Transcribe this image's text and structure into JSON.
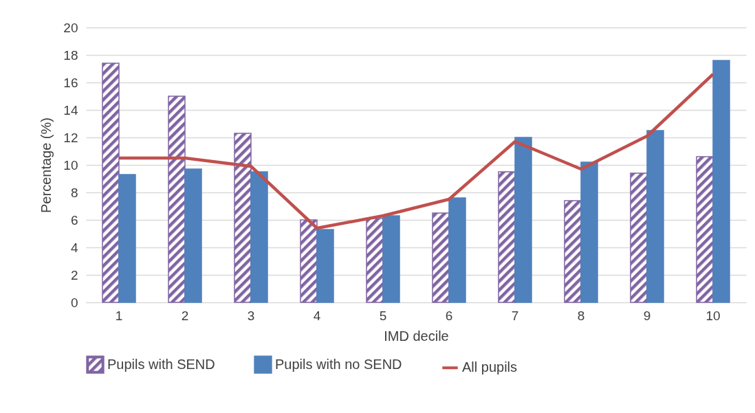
{
  "chart_data": {
    "type": "bar",
    "xlabel": "IMD decile",
    "ylabel": "Percentage (%)",
    "categories": [
      "1",
      "2",
      "3",
      "4",
      "5",
      "6",
      "7",
      "8",
      "9",
      "10"
    ],
    "series": [
      {
        "name": "Pupils with SEND",
        "color": "#8064a2",
        "values": [
          17.4,
          15.0,
          12.3,
          6.0,
          6.1,
          6.5,
          9.5,
          7.4,
          9.4,
          10.6
        ]
      },
      {
        "name": "Pupils with no SEND",
        "color": "#4f81bd",
        "values": [
          9.3,
          9.7,
          9.5,
          5.3,
          6.3,
          7.6,
          12.0,
          10.2,
          12.5,
          17.6
        ]
      },
      {
        "name": "All pupils",
        "type": "line",
        "color": "#c0504d",
        "values": [
          10.5,
          10.5,
          9.9,
          5.4,
          6.3,
          7.5,
          11.7,
          9.7,
          12.1,
          16.6
        ]
      }
    ],
    "ylim": [
      0,
      20
    ],
    "yticks": [
      0,
      2,
      4,
      6,
      8,
      10,
      12,
      14,
      16,
      18,
      20
    ],
    "grid": "y",
    "legend": "bottom"
  }
}
